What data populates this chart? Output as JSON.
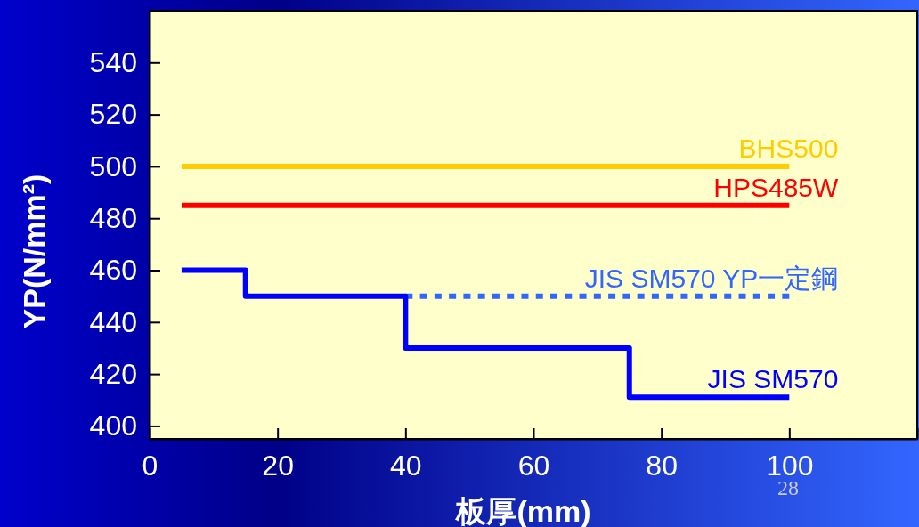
{
  "chart_data": {
    "type": "step",
    "xlabel": "板厚(mm)",
    "ylabel": "YP(N/mm²)",
    "xlim": [
      0,
      120
    ],
    "xticks": [
      0,
      20,
      40,
      60,
      80,
      100,
      {
        "value": 120,
        "label": null
      }
    ],
    "ylim": [
      395,
      560
    ],
    "yticks": [
      400,
      420,
      440,
      460,
      480,
      500,
      520,
      540
    ],
    "grid": false,
    "line_style": "solid",
    "series": [
      {
        "name": "BHS500",
        "color": "#ffcc00",
        "x": [
          5,
          100
        ],
        "values": [
          500,
          500
        ]
      },
      {
        "name": "HPS485W",
        "color": "#ff0000",
        "x": [
          5,
          100
        ],
        "values": [
          485,
          485
        ]
      },
      {
        "name": "JIS SM570 YP一定鋼",
        "color": "#3366ff",
        "line_style": "dotted",
        "x": [
          40,
          100
        ],
        "values": [
          450,
          450
        ]
      },
      {
        "name": "JIS SM570",
        "color": "#0000ff",
        "x": [
          5,
          15,
          40,
          75,
          100
        ],
        "values": [
          460,
          450,
          430,
          411,
          411
        ]
      }
    ],
    "annotations": [
      "28"
    ]
  }
}
